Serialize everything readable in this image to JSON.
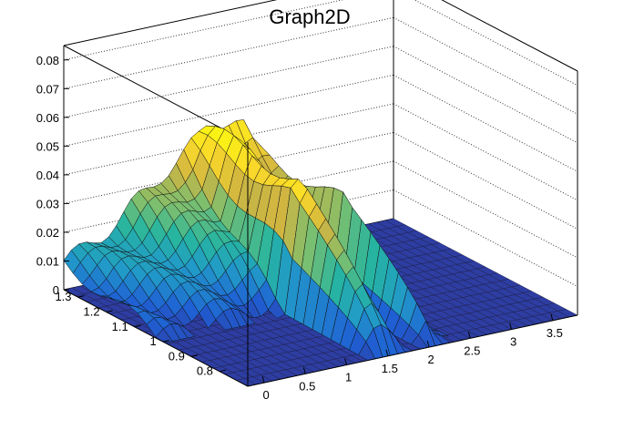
{
  "chart_data": {
    "type": "surface",
    "title": "Graph2D",
    "xlabel": "",
    "ylabel": "",
    "zlabel": "",
    "x_ticks": [
      "0",
      "0.5",
      "1",
      "1.5",
      "2",
      "2.5",
      "3",
      "3.5"
    ],
    "y_ticks": [
      "0.8",
      "0.9",
      "1",
      "1.1",
      "1.2",
      "1.3"
    ],
    "z_ticks": [
      "0",
      "0.01",
      "0.02",
      "0.03",
      "0.04",
      "0.05",
      "0.06",
      "0.07",
      "0.08"
    ],
    "xlim": [
      -0.2,
      3.8
    ],
    "ylim": [
      0.7,
      1.35
    ],
    "zlim": [
      0,
      0.085
    ],
    "grid": true,
    "colormap": "viridis",
    "palette": [
      "#352a87",
      "#1f5fd4",
      "#2199c9",
      "#26b5a0",
      "#7cbf6f",
      "#d0b541",
      "#fbd92a",
      "#f9fb0e"
    ],
    "surface_profile": {
      "x": [
        -0.2,
        0.0,
        0.25,
        0.5,
        0.75,
        1.0,
        1.25,
        1.45,
        1.55,
        1.8,
        1.95,
        2.05,
        2.15,
        2.3,
        2.6,
        3.0,
        3.4,
        3.8
      ],
      "height_at_y_max": [
        0.01,
        0.012,
        0.016,
        0.021,
        0.027,
        0.033,
        0.038,
        0.043,
        0.047,
        0.047,
        0.045,
        0.04,
        0.02,
        0.0,
        0.0,
        0.0,
        0.0,
        0.0
      ],
      "height_at_y_1": [
        0.0,
        0.0,
        0.0,
        0.0,
        0.0,
        0.0,
        0.0,
        0.042,
        0.044,
        0.0,
        0.0,
        0.04,
        0.012,
        0.0,
        0.0,
        0.0,
        0.0,
        0.0
      ],
      "y_step": 0.8
    }
  }
}
